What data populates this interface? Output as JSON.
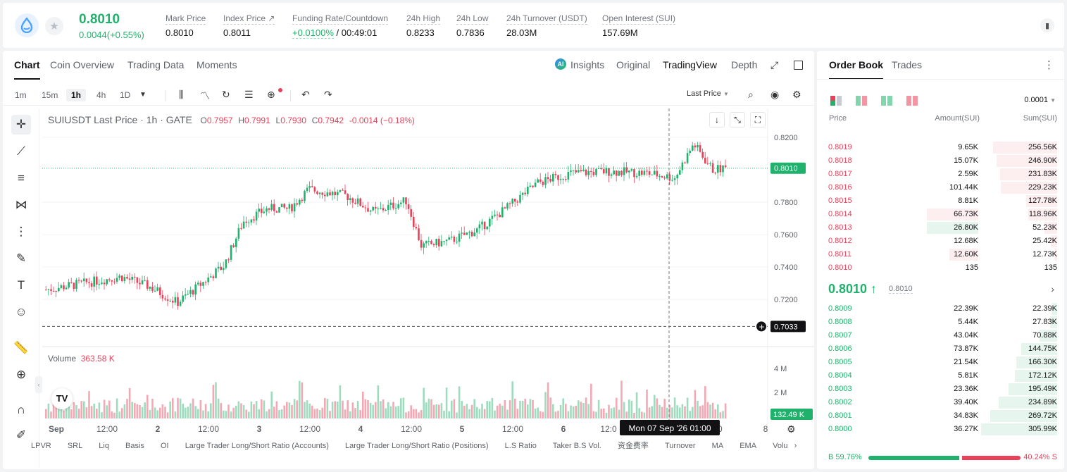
{
  "header": {
    "last_price": "0.8010",
    "change": "0.0044(+0.55%)",
    "stats": [
      {
        "label": "Mark Price",
        "value": "0.8010"
      },
      {
        "label": "Index Price ↗",
        "value": "0.8011"
      },
      {
        "label": "Funding Rate/Countdown",
        "value_green": "+0.0100%",
        "value": "/ 00:49:01"
      },
      {
        "label": "24h High",
        "value": "0.8233"
      },
      {
        "label": "24h Low",
        "value": "0.7836"
      },
      {
        "label": "24h Turnover (USDT)",
        "value": "28.03M"
      },
      {
        "label": "Open Interest (SUI)",
        "value": "157.69M"
      }
    ],
    "icons": {
      "coin": "sui-logo-icon",
      "favorite": "star-icon",
      "book": "book-icon"
    }
  },
  "chart_tabs": [
    "Chart",
    "Coin Overview",
    "Trading Data",
    "Moments"
  ],
  "chart_view_tabs": {
    "insights": "Insights",
    "original": "Original",
    "tradingview": "TradingView",
    "depth": "Depth"
  },
  "timeframes": [
    "1m",
    "15m",
    "1h",
    "4h",
    "1D"
  ],
  "active_timeframe": "1h",
  "price_source": "Last Price",
  "legend": {
    "symbol": "SUIUSDT Last Price · 1h · GATE",
    "o_label": "O",
    "o": "0.7957",
    "h_label": "H",
    "h": "0.7991",
    "l_label": "L",
    "l": "0.7930",
    "c_label": "C",
    "c": "0.7942",
    "chg": "-0.0014 (−0.18%)"
  },
  "volume_legend": {
    "label": "Volume",
    "value": "363.58 K"
  },
  "chart_data": {
    "type": "candlestick",
    "price_axis_ticks": [
      "0.8200",
      "0.7800",
      "0.7600",
      "0.7400",
      "0.7200"
    ],
    "price_axis_values": [
      0.82,
      0.78,
      0.76,
      0.74,
      0.72
    ],
    "last_price_marker": "0.8010",
    "last_price_value": 0.801,
    "crosshair_price": "0.7033",
    "crosshair_price_value": 0.7033,
    "crosshair_time": "Mon 07 Sep '26   01:00",
    "volume_axis_ticks": [
      "4 M",
      "2 M"
    ],
    "volume_axis_values": [
      4,
      2
    ],
    "last_volume": "132.49 K",
    "x_ticks": [
      "Sep",
      "12:00",
      "2",
      "12:00",
      "3",
      "12:00",
      "4",
      "12:00",
      "5",
      "12:00",
      "6",
      "12:0",
      "00",
      "8"
    ],
    "ylim": [
      0.703,
      0.8233
    ],
    "anchors": [
      [
        0,
        0.726
      ],
      [
        20,
        0.73
      ],
      [
        40,
        0.734
      ],
      [
        55,
        0.728
      ],
      [
        70,
        0.718
      ],
      [
        80,
        0.727
      ],
      [
        95,
        0.741
      ],
      [
        105,
        0.768
      ],
      [
        118,
        0.776
      ],
      [
        130,
        0.776
      ],
      [
        140,
        0.788
      ],
      [
        160,
        0.784
      ],
      [
        175,
        0.774
      ],
      [
        192,
        0.781
      ],
      [
        200,
        0.753
      ],
      [
        215,
        0.756
      ],
      [
        230,
        0.763
      ],
      [
        245,
        0.776
      ],
      [
        262,
        0.792
      ],
      [
        280,
        0.798
      ],
      [
        300,
        0.799
      ],
      [
        320,
        0.798
      ],
      [
        335,
        0.795
      ],
      [
        345,
        0.816
      ],
      [
        355,
        0.8
      ],
      [
        362,
        0.801
      ]
    ]
  },
  "bottom_indicators": [
    "LPVR",
    "SRL",
    "Liq",
    "Basis",
    "OI",
    "Large Trader Long/Short Ratio (Accounts)",
    "Large Trader Long/Short Ratio (Positions)",
    "L.S Ratio",
    "Taker B.S Vol.",
    "资金费率",
    "Turnover",
    "MA",
    "EMA",
    "Volu"
  ],
  "order_book": {
    "tabs": [
      "Order Book",
      "Trades"
    ],
    "precision": "0.0001",
    "headers": {
      "price": "Price",
      "amount": "Amount(SUI)",
      "sum": "Sum(SUI)"
    },
    "asks": [
      {
        "price": "0.8019",
        "amount": "9.65K",
        "sum": "256.56K",
        "depth": 0.84,
        "amt_frac": 0
      },
      {
        "price": "0.8018",
        "amount": "15.07K",
        "sum": "246.90K",
        "depth": 0.8,
        "amt_frac": 0
      },
      {
        "price": "0.8017",
        "amount": "2.59K",
        "sum": "231.83K",
        "depth": 0.75,
        "amt_frac": 0
      },
      {
        "price": "0.8016",
        "amount": "101.44K",
        "sum": "229.23K",
        "depth": 0.74,
        "amt_frac": 0
      },
      {
        "price": "0.8015",
        "amount": "8.81K",
        "sum": "127.78K",
        "depth": 0.41,
        "amt_frac": 0
      },
      {
        "price": "0.8014",
        "amount": "66.73K",
        "sum": "118.96K",
        "depth": 0.38,
        "amt_frac": 0.66
      },
      {
        "price": "0.8013",
        "amount": "26.80K",
        "sum": "52.23K",
        "depth": 0.17,
        "amt_frac": 0.66,
        "amt_green": true
      },
      {
        "price": "0.8012",
        "amount": "12.68K",
        "sum": "25.42K",
        "depth": 0.08,
        "amt_frac": 0
      },
      {
        "price": "0.8011",
        "amount": "12.60K",
        "sum": "12.73K",
        "depth": 0.04,
        "amt_frac": 0.37
      },
      {
        "price": "0.8010",
        "amount": "135",
        "sum": "135",
        "depth": 0,
        "amt_frac": 0
      }
    ],
    "mid_price": "0.8010 ↑",
    "mark_price": "0.8010",
    "bids": [
      {
        "price": "0.8009",
        "amount": "22.39K",
        "sum": "22.39K",
        "depth": 0.07
      },
      {
        "price": "0.8008",
        "amount": "5.44K",
        "sum": "27.83K",
        "depth": 0.09
      },
      {
        "price": "0.8007",
        "amount": "43.04K",
        "sum": "70.88K",
        "depth": 0.23
      },
      {
        "price": "0.8006",
        "amount": "73.87K",
        "sum": "144.75K",
        "depth": 0.47
      },
      {
        "price": "0.8005",
        "amount": "21.54K",
        "sum": "166.30K",
        "depth": 0.54
      },
      {
        "price": "0.8004",
        "amount": "5.81K",
        "sum": "172.12K",
        "depth": 0.56
      },
      {
        "price": "0.8003",
        "amount": "23.36K",
        "sum": "195.49K",
        "depth": 0.64
      },
      {
        "price": "0.8002",
        "amount": "39.40K",
        "sum": "234.89K",
        "depth": 0.77
      },
      {
        "price": "0.8001",
        "amount": "34.83K",
        "sum": "269.72K",
        "depth": 0.88
      },
      {
        "price": "0.8000",
        "amount": "36.27K",
        "sum": "305.99K",
        "depth": 1.0
      }
    ],
    "buy_ratio": "59.76%",
    "sell_ratio": "40.24%",
    "buy_ratio_value": 0.5976,
    "buy_label": "B",
    "sell_label": "S"
  },
  "colors": {
    "up": "#20b26c",
    "down": "#e8425a",
    "up_light": "#e6f6ee",
    "down_light": "#fdeef0"
  }
}
